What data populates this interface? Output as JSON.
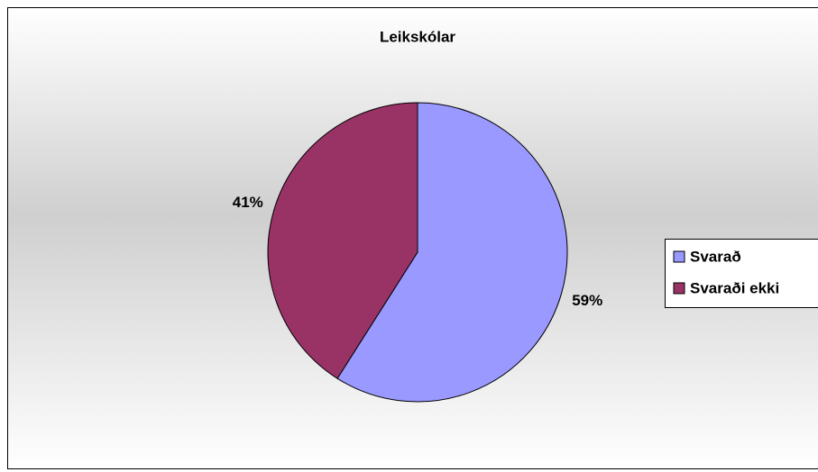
{
  "chart_data": {
    "type": "pie",
    "title": "Leikskólar",
    "categories": [
      "Svarað",
      "Svaraði ekki"
    ],
    "values": [
      59,
      41
    ],
    "value_labels": [
      "59%",
      "41%"
    ],
    "colors": [
      "#9999ff",
      "#993366"
    ],
    "legend": "right"
  }
}
